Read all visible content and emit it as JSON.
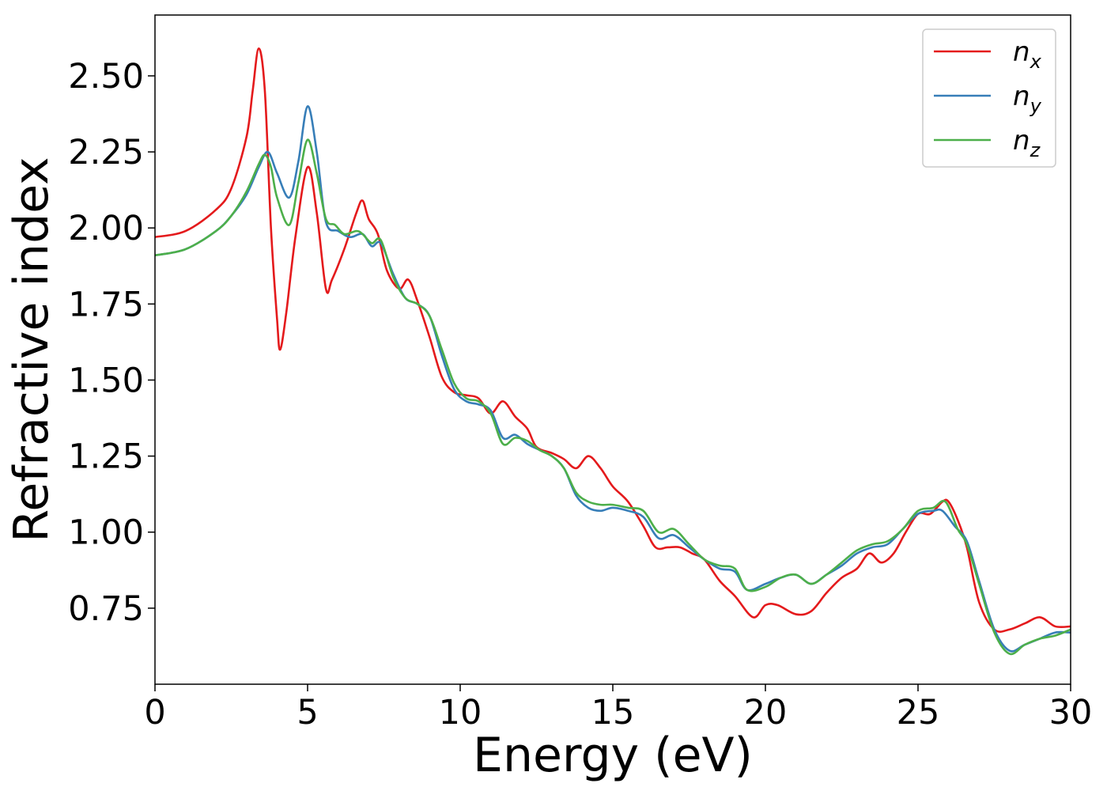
{
  "chart_data": {
    "type": "line",
    "title": "",
    "xlabel": "Energy (eV)",
    "ylabel": "Refractive index",
    "xlim": [
      0,
      30
    ],
    "ylim": [
      0.5,
      2.7
    ],
    "xticks": [
      0,
      5,
      10,
      15,
      20,
      25,
      30
    ],
    "xtick_labels": [
      "0",
      "5",
      "10",
      "15",
      "20",
      "25",
      "30"
    ],
    "yticks": [
      0.75,
      1.0,
      1.25,
      1.5,
      1.75,
      2.0,
      2.25,
      2.5
    ],
    "ytick_labels": [
      "0.75",
      "1.00",
      "1.25",
      "1.50",
      "1.75",
      "2.00",
      "2.25",
      "2.50"
    ],
    "grid": false,
    "legend_position": "top-right",
    "series": [
      {
        "name": "n",
        "subscript": "x",
        "color": "#e41a1c",
        "x": [
          0,
          1,
          2,
          2.5,
          3,
          3.2,
          3.4,
          3.6,
          3.8,
          4.0,
          4.1,
          4.3,
          4.6,
          5.0,
          5.3,
          5.6,
          5.8,
          6.2,
          6.6,
          6.8,
          7.0,
          7.3,
          7.6,
          8.0,
          8.3,
          8.6,
          9.0,
          9.4,
          9.8,
          10.2,
          10.6,
          11.0,
          11.4,
          11.8,
          12.2,
          12.5,
          13.0,
          13.4,
          13.8,
          14.2,
          14.6,
          15.0,
          15.5,
          16.0,
          16.4,
          16.8,
          17.2,
          17.6,
          18.0,
          18.5,
          19.0,
          19.6,
          20.0,
          20.4,
          21.0,
          21.5,
          22.0,
          22.5,
          23.0,
          23.4,
          23.8,
          24.2,
          24.6,
          25.0,
          25.4,
          25.8,
          26.0,
          26.3,
          26.6,
          27.0,
          27.5,
          28.0,
          28.5,
          29.0,
          29.5,
          30.0
        ],
        "y": [
          1.97,
          1.99,
          2.06,
          2.13,
          2.3,
          2.45,
          2.59,
          2.45,
          2.0,
          1.7,
          1.6,
          1.72,
          1.97,
          2.2,
          2.05,
          1.8,
          1.83,
          1.93,
          2.05,
          2.09,
          2.03,
          1.98,
          1.86,
          1.8,
          1.83,
          1.76,
          1.64,
          1.51,
          1.46,
          1.45,
          1.44,
          1.39,
          1.43,
          1.38,
          1.34,
          1.28,
          1.26,
          1.24,
          1.21,
          1.25,
          1.21,
          1.15,
          1.1,
          1.02,
          0.95,
          0.95,
          0.95,
          0.93,
          0.91,
          0.84,
          0.79,
          0.72,
          0.76,
          0.76,
          0.73,
          0.74,
          0.8,
          0.85,
          0.88,
          0.93,
          0.9,
          0.93,
          1.0,
          1.06,
          1.06,
          1.1,
          1.1,
          1.04,
          0.95,
          0.77,
          0.68,
          0.68,
          0.7,
          0.72,
          0.69,
          0.69
        ]
      },
      {
        "name": "n",
        "subscript": "y",
        "color": "#377eb8",
        "x": [
          0,
          1,
          2,
          2.5,
          3,
          3.4,
          3.7,
          4.0,
          4.4,
          4.7,
          5.0,
          5.3,
          5.6,
          6.0,
          6.4,
          6.8,
          7.1,
          7.4,
          7.8,
          8.2,
          8.6,
          9.0,
          9.4,
          9.8,
          10.2,
          10.6,
          11.0,
          11.4,
          11.8,
          12.2,
          12.6,
          13.0,
          13.4,
          13.8,
          14.2,
          14.6,
          15.0,
          15.5,
          16.0,
          16.5,
          17.0,
          17.5,
          18.0,
          18.5,
          19.0,
          19.4,
          20.0,
          20.5,
          21.0,
          21.5,
          22.0,
          22.5,
          23.0,
          23.5,
          24.0,
          24.5,
          25.0,
          25.5,
          25.8,
          26.2,
          26.6,
          27.0,
          27.5,
          28.0,
          28.5,
          29.0,
          29.5,
          30.0
        ],
        "y": [
          1.91,
          1.93,
          1.99,
          2.04,
          2.11,
          2.2,
          2.25,
          2.18,
          2.1,
          2.22,
          2.4,
          2.25,
          2.02,
          1.99,
          1.97,
          1.98,
          1.94,
          1.95,
          1.85,
          1.77,
          1.75,
          1.71,
          1.58,
          1.47,
          1.43,
          1.42,
          1.4,
          1.31,
          1.32,
          1.29,
          1.27,
          1.25,
          1.21,
          1.12,
          1.08,
          1.07,
          1.08,
          1.07,
          1.05,
          0.98,
          0.99,
          0.95,
          0.91,
          0.88,
          0.87,
          0.81,
          0.83,
          0.85,
          0.86,
          0.83,
          0.86,
          0.89,
          0.93,
          0.95,
          0.96,
          1.01,
          1.06,
          1.07,
          1.07,
          1.02,
          0.97,
          0.84,
          0.68,
          0.61,
          0.63,
          0.65,
          0.67,
          0.67
        ]
      },
      {
        "name": "n",
        "subscript": "z",
        "color": "#4daf4a",
        "x": [
          0,
          1,
          2,
          2.5,
          3,
          3.4,
          3.6,
          3.8,
          4.0,
          4.4,
          4.7,
          5.0,
          5.3,
          5.6,
          5.9,
          6.2,
          6.6,
          6.8,
          7.1,
          7.4,
          7.8,
          8.2,
          8.6,
          9.0,
          9.4,
          9.8,
          10.2,
          10.6,
          11.0,
          11.4,
          11.8,
          12.2,
          12.6,
          13.0,
          13.4,
          13.8,
          14.2,
          14.6,
          15.0,
          15.5,
          16.0,
          16.5,
          17.0,
          17.5,
          18.0,
          18.5,
          19.0,
          19.4,
          20.0,
          20.5,
          21.0,
          21.5,
          22.0,
          22.5,
          23.0,
          23.5,
          24.0,
          24.5,
          25.0,
          25.5,
          25.9,
          26.3,
          26.6,
          27.0,
          27.5,
          28.0,
          28.5,
          29.0,
          29.5,
          30.0
        ],
        "y": [
          1.91,
          1.93,
          1.99,
          2.04,
          2.12,
          2.21,
          2.24,
          2.2,
          2.1,
          2.01,
          2.15,
          2.29,
          2.18,
          2.03,
          2.01,
          1.98,
          1.99,
          1.98,
          1.95,
          1.96,
          1.84,
          1.77,
          1.75,
          1.71,
          1.6,
          1.49,
          1.44,
          1.43,
          1.39,
          1.29,
          1.31,
          1.3,
          1.27,
          1.25,
          1.21,
          1.13,
          1.1,
          1.09,
          1.09,
          1.08,
          1.07,
          1.0,
          1.01,
          0.96,
          0.91,
          0.89,
          0.88,
          0.81,
          0.82,
          0.85,
          0.86,
          0.83,
          0.86,
          0.9,
          0.94,
          0.96,
          0.97,
          1.01,
          1.07,
          1.08,
          1.1,
          1.01,
          0.96,
          0.83,
          0.67,
          0.6,
          0.63,
          0.65,
          0.66,
          0.68
        ]
      }
    ]
  }
}
